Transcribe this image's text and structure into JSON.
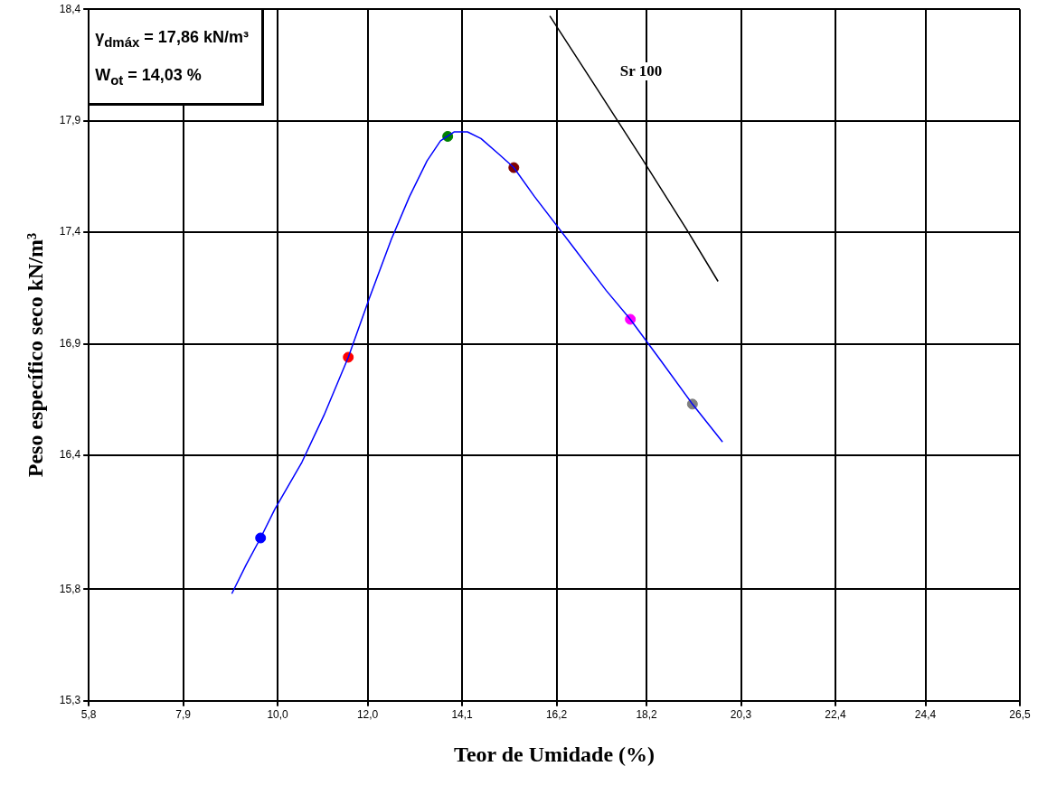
{
  "chart_data": {
    "type": "line",
    "xlabel": "Teor de Umidade (%)",
    "ylabel": "Peso específico seco kN/m³",
    "xlim": [
      5.8,
      26.5
    ],
    "xticks": [
      {
        "value": 5.8,
        "label": "5,8"
      },
      {
        "value": 7.9,
        "label": "7,9"
      },
      {
        "value": 10.0,
        "label": "10,0"
      },
      {
        "value": 12.0,
        "label": "12,0"
      },
      {
        "value": 14.1,
        "label": "14,1"
      },
      {
        "value": 16.2,
        "label": "16,2"
      },
      {
        "value": 18.2,
        "label": "18,2"
      },
      {
        "value": 20.3,
        "label": "20,3"
      },
      {
        "value": 22.4,
        "label": "22,4"
      },
      {
        "value": 24.4,
        "label": "24,4"
      },
      {
        "value": 26.5,
        "label": "26,5"
      }
    ],
    "ylim": [
      15.3,
      18.4
    ],
    "yticks": [
      {
        "value": 15.3,
        "label": "15,3"
      },
      {
        "value": 15.8,
        "label": "15,8"
      },
      {
        "value": 16.4,
        "label": "16,4"
      },
      {
        "value": 16.9,
        "label": "16,9"
      },
      {
        "value": 17.4,
        "label": "17,4"
      },
      {
        "value": 17.9,
        "label": "17,9"
      },
      {
        "value": 18.4,
        "label": "18,4"
      }
    ],
    "grid": true,
    "legend": false,
    "series": [
      {
        "marker": "none",
        "color": "#0000ff",
        "x": [
          8.98,
          9.3,
          9.62,
          9.94,
          10.54,
          11.03,
          11.57,
          12.03,
          12.53,
          12.93,
          13.32,
          13.62,
          13.92,
          14.22,
          14.52,
          14.92,
          15.25,
          15.71,
          16.51,
          17.3,
          17.84,
          18.5,
          19.22,
          19.89
        ],
        "values": [
          15.78,
          15.91,
          16.03,
          16.16,
          16.37,
          16.58,
          16.84,
          17.1,
          17.37,
          17.56,
          17.72,
          17.81,
          17.85,
          17.85,
          17.82,
          17.75,
          17.69,
          17.56,
          17.35,
          17.14,
          17.01,
          16.83,
          16.63,
          16.46
        ]
      },
      {
        "type": "scatter",
        "marker": "circle",
        "colors": [
          "#0000ff",
          "#ff0000",
          "#008000",
          "#800000",
          "#ff00ff",
          "#808080"
        ],
        "x": [
          9.62,
          11.57,
          13.78,
          15.25,
          17.84,
          19.22
        ],
        "values": [
          16.03,
          16.84,
          17.83,
          17.69,
          17.01,
          16.63
        ]
      },
      {
        "marker": "none",
        "color": "#000000",
        "x": [
          16.05,
          17.11,
          18.1,
          19.1,
          19.79
        ],
        "values": [
          18.37,
          18.04,
          17.73,
          17.41,
          17.18
        ]
      }
    ],
    "annotations": [
      "γ$_{dmáx}$ = 17,86 kN/m³",
      "W$_{ot}$ = 14,03 %",
      "Sr 100"
    ]
  }
}
